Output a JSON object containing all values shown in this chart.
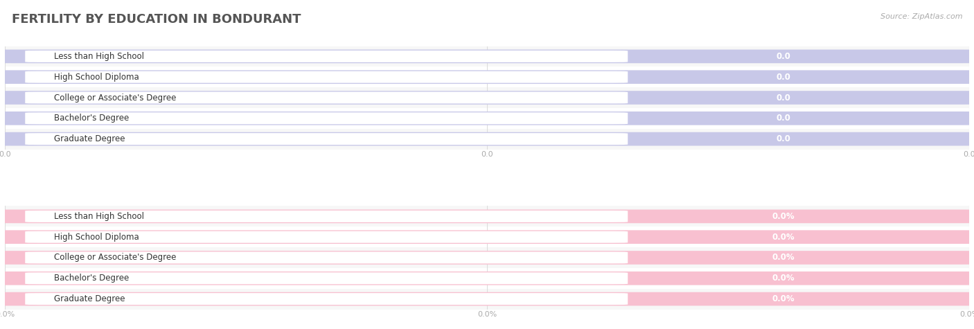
{
  "title": "FERTILITY BY EDUCATION IN BONDURANT",
  "source": "Source: ZipAtlas.com",
  "categories": [
    "Less than High School",
    "High School Diploma",
    "College or Associate's Degree",
    "Bachelor's Degree",
    "Graduate Degree"
  ],
  "top_values": [
    0.0,
    0.0,
    0.0,
    0.0,
    0.0
  ],
  "bottom_values": [
    0.0,
    0.0,
    0.0,
    0.0,
    0.0
  ],
  "top_color": "#b0b0dd",
  "top_color_light": "#c8c8e8",
  "bottom_color": "#f090aa",
  "bottom_color_light": "#f8c0d0",
  "title_color": "#555555",
  "label_color": "#333333",
  "value_color": "#aaaacc",
  "value_color_bottom": "#dd8899",
  "tick_color": "#aaaaaa",
  "figsize": [
    14.06,
    4.75
  ],
  "dpi": 100
}
